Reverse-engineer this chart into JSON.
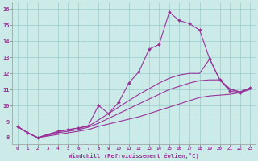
{
  "xlabel": "Windchill (Refroidissement éolien,°C)",
  "background_color": "#cceae8",
  "line_color": "#993399",
  "grid_color": "#99cccc",
  "xlim": [
    -0.5,
    23.5
  ],
  "ylim": [
    7.6,
    16.4
  ],
  "yticks": [
    8,
    9,
    10,
    11,
    12,
    13,
    14,
    15,
    16
  ],
  "xticks": [
    0,
    1,
    2,
    3,
    4,
    5,
    6,
    7,
    8,
    9,
    10,
    11,
    12,
    13,
    14,
    15,
    16,
    17,
    18,
    19,
    20,
    21,
    22,
    23
  ],
  "series": [
    {
      "x": [
        0,
        1,
        2,
        3,
        4,
        5,
        6,
        7,
        8,
        9,
        10,
        11,
        12,
        13,
        14,
        15,
        16,
        17,
        18,
        19,
        20,
        21,
        22,
        23
      ],
      "y": [
        8.7,
        8.3,
        8.0,
        8.1,
        8.2,
        8.3,
        8.4,
        8.5,
        8.7,
        8.85,
        9.0,
        9.15,
        9.3,
        9.5,
        9.7,
        9.9,
        10.1,
        10.3,
        10.5,
        10.6,
        10.65,
        10.7,
        10.8,
        11.0
      ],
      "marker": false
    },
    {
      "x": [
        0,
        1,
        2,
        3,
        4,
        5,
        6,
        7,
        8,
        9,
        10,
        11,
        12,
        13,
        14,
        15,
        16,
        17,
        18,
        19,
        20,
        21,
        22,
        23
      ],
      "y": [
        8.7,
        8.3,
        8.0,
        8.15,
        8.3,
        8.4,
        8.5,
        8.65,
        8.9,
        9.2,
        9.5,
        9.8,
        10.1,
        10.4,
        10.7,
        11.0,
        11.2,
        11.4,
        11.55,
        11.6,
        11.6,
        11.05,
        10.85,
        11.1
      ],
      "marker": false
    },
    {
      "x": [
        0,
        1,
        2,
        3,
        4,
        5,
        6,
        7,
        8,
        9,
        10,
        11,
        12,
        13,
        14,
        15,
        16,
        17,
        18,
        19,
        20,
        21,
        22,
        23
      ],
      "y": [
        8.7,
        8.3,
        8.0,
        8.2,
        8.35,
        8.5,
        8.6,
        8.7,
        9.1,
        9.5,
        9.9,
        10.3,
        10.7,
        11.05,
        11.4,
        11.7,
        11.9,
        12.0,
        12.0,
        12.9,
        11.6,
        11.0,
        10.85,
        11.1
      ],
      "marker": false
    },
    {
      "x": [
        0,
        1,
        2,
        3,
        4,
        5,
        6,
        7,
        8,
        9,
        10,
        11,
        12,
        13,
        14,
        15,
        16,
        17,
        18,
        19,
        20,
        21,
        22,
        23
      ],
      "y": [
        8.7,
        8.3,
        8.0,
        8.2,
        8.4,
        8.5,
        8.6,
        8.75,
        10.0,
        9.5,
        10.2,
        11.4,
        12.1,
        13.5,
        13.8,
        15.8,
        15.3,
        15.1,
        14.7,
        12.9,
        11.6,
        10.9,
        10.8,
        11.1
      ],
      "marker": true
    }
  ]
}
